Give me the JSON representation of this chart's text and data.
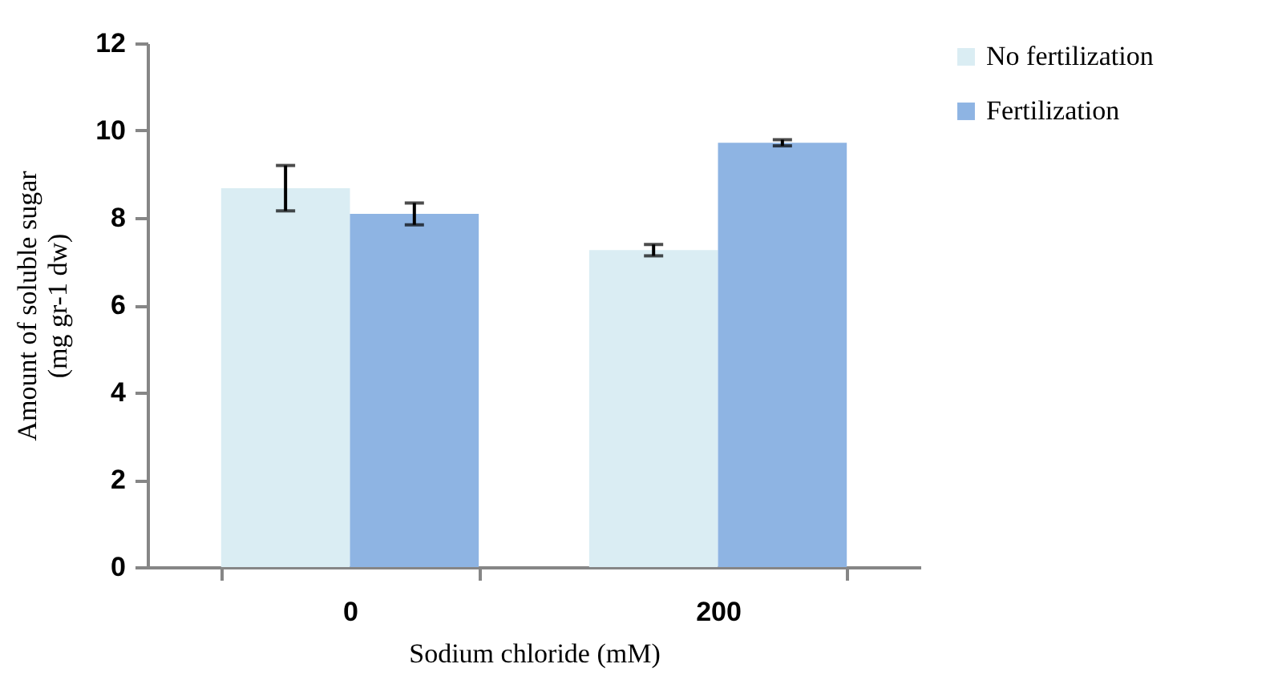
{
  "chart_data": {
    "type": "bar",
    "xlabel": "Sodium chloride (mM)",
    "ylabel": "Amount of soluble sugar\n(mg gr-1 dw)",
    "categories": [
      "0",
      "200"
    ],
    "series": [
      {
        "name": "No fertilization",
        "color": "#daedf3",
        "values": [
          8.68,
          7.26
        ],
        "errors": [
          0.52,
          0.13
        ]
      },
      {
        "name": "Fertilization",
        "color": "#8eb4e3",
        "values": [
          8.09,
          9.72
        ],
        "errors": [
          0.25,
          0.07
        ]
      }
    ],
    "ylim": [
      0,
      12
    ],
    "yticks": [
      0,
      2,
      4,
      6,
      8,
      10,
      12
    ],
    "grid": false,
    "legend": "top right"
  }
}
